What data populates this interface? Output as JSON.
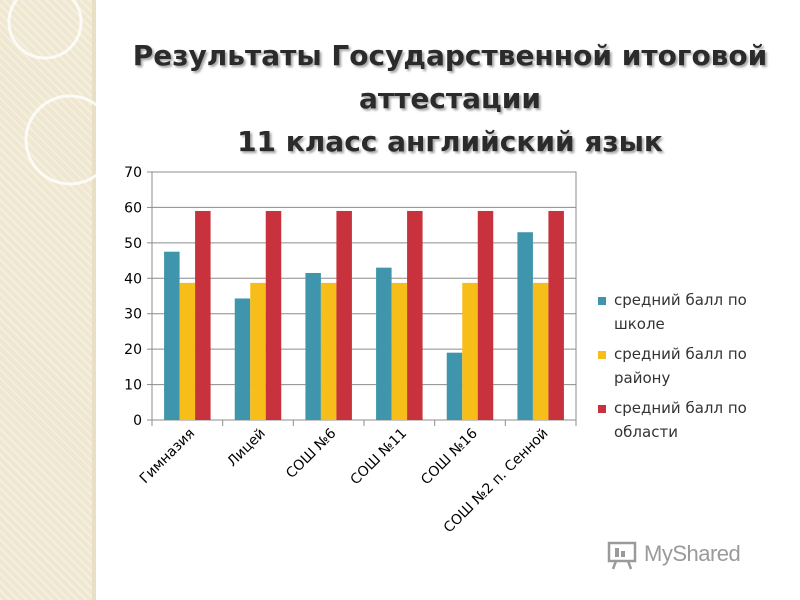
{
  "slide": {
    "title_lines": [
      "Результаты Государственной итоговой",
      "аттестации",
      "11 класс английский язык"
    ],
    "title_color": "#2b2b2b",
    "background_strip_color": "#efe7cf"
  },
  "watermark": {
    "text": "MyShared",
    "icon": "presentation-board-icon"
  },
  "chart_data": {
    "type": "bar",
    "title": "",
    "xlabel": "",
    "ylabel": "",
    "ylim": [
      0,
      70
    ],
    "yticks": [
      0,
      10,
      20,
      30,
      40,
      50,
      60,
      70
    ],
    "grid": true,
    "legend_position": "right",
    "categories": [
      "Гимназия",
      "Лицей",
      "СОШ №6",
      "СОШ №11",
      "СОШ №16",
      "СОШ №2 п. Сенной"
    ],
    "series": [
      {
        "name": "средний балл по школе",
        "color": "#3f95ab",
        "values": [
          47.5,
          34.3,
          41.5,
          43,
          19,
          53
        ]
      },
      {
        "name": "средний балл по району",
        "color": "#f7be1a",
        "values": [
          38.7,
          38.7,
          38.7,
          38.7,
          38.7,
          38.7
        ]
      },
      {
        "name": "средний балл по области",
        "color": "#c8323c",
        "values": [
          59,
          59,
          59,
          59,
          59,
          59
        ]
      }
    ]
  }
}
